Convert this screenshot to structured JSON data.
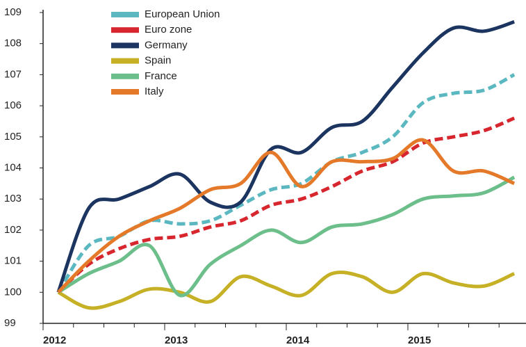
{
  "chart_data": {
    "type": "line",
    "categories": [
      "2012",
      null,
      null,
      null,
      "2013",
      null,
      null,
      null,
      "2014",
      null,
      null,
      null,
      "2015",
      null,
      null,
      null
    ],
    "series": [
      {
        "name": "European Union",
        "color": "#5bb8c0",
        "dashed": true,
        "values": [
          100,
          101.5,
          101.8,
          102.3,
          102.2,
          102.3,
          102.8,
          103.3,
          103.5,
          104.2,
          104.5,
          105.0,
          106.1,
          106.4,
          106.5,
          107.0
        ]
      },
      {
        "name": "Euro zone",
        "color": "#d7262e",
        "dashed": true,
        "values": [
          100,
          100.9,
          101.4,
          101.7,
          101.8,
          102.1,
          102.3,
          102.8,
          103.0,
          103.4,
          103.9,
          104.2,
          104.8,
          105.0,
          105.2,
          105.6
        ]
      },
      {
        "name": "Germany",
        "color": "#1b3560",
        "dashed": false,
        "values": [
          100,
          102.7,
          103.0,
          103.4,
          103.8,
          102.9,
          102.9,
          104.6,
          104.5,
          105.3,
          105.5,
          106.6,
          107.7,
          108.5,
          108.4,
          108.7
        ]
      },
      {
        "name": "Spain",
        "color": "#c6b026",
        "dashed": false,
        "values": [
          100,
          99.5,
          99.7,
          100.1,
          100.0,
          99.7,
          100.5,
          100.2,
          99.9,
          100.6,
          100.5,
          100.0,
          100.6,
          100.3,
          100.2,
          100.6
        ]
      },
      {
        "name": "France",
        "color": "#6cbf8a",
        "dashed": false,
        "values": [
          100,
          100.6,
          101.0,
          101.5,
          99.9,
          100.9,
          101.5,
          102.0,
          101.6,
          102.1,
          102.2,
          102.5,
          103.0,
          103.1,
          103.2,
          103.7
        ]
      },
      {
        "name": "Italy",
        "color": "#e5792a",
        "dashed": false,
        "values": [
          100,
          101.0,
          101.8,
          102.3,
          102.7,
          103.3,
          103.5,
          104.5,
          103.4,
          104.2,
          104.2,
          104.3,
          104.9,
          103.9,
          103.9,
          103.5
        ]
      }
    ],
    "ylim": [
      99,
      109
    ],
    "yticks": [
      99,
      100,
      101,
      102,
      103,
      104,
      105,
      106,
      107,
      108,
      109
    ],
    "grid": false
  }
}
